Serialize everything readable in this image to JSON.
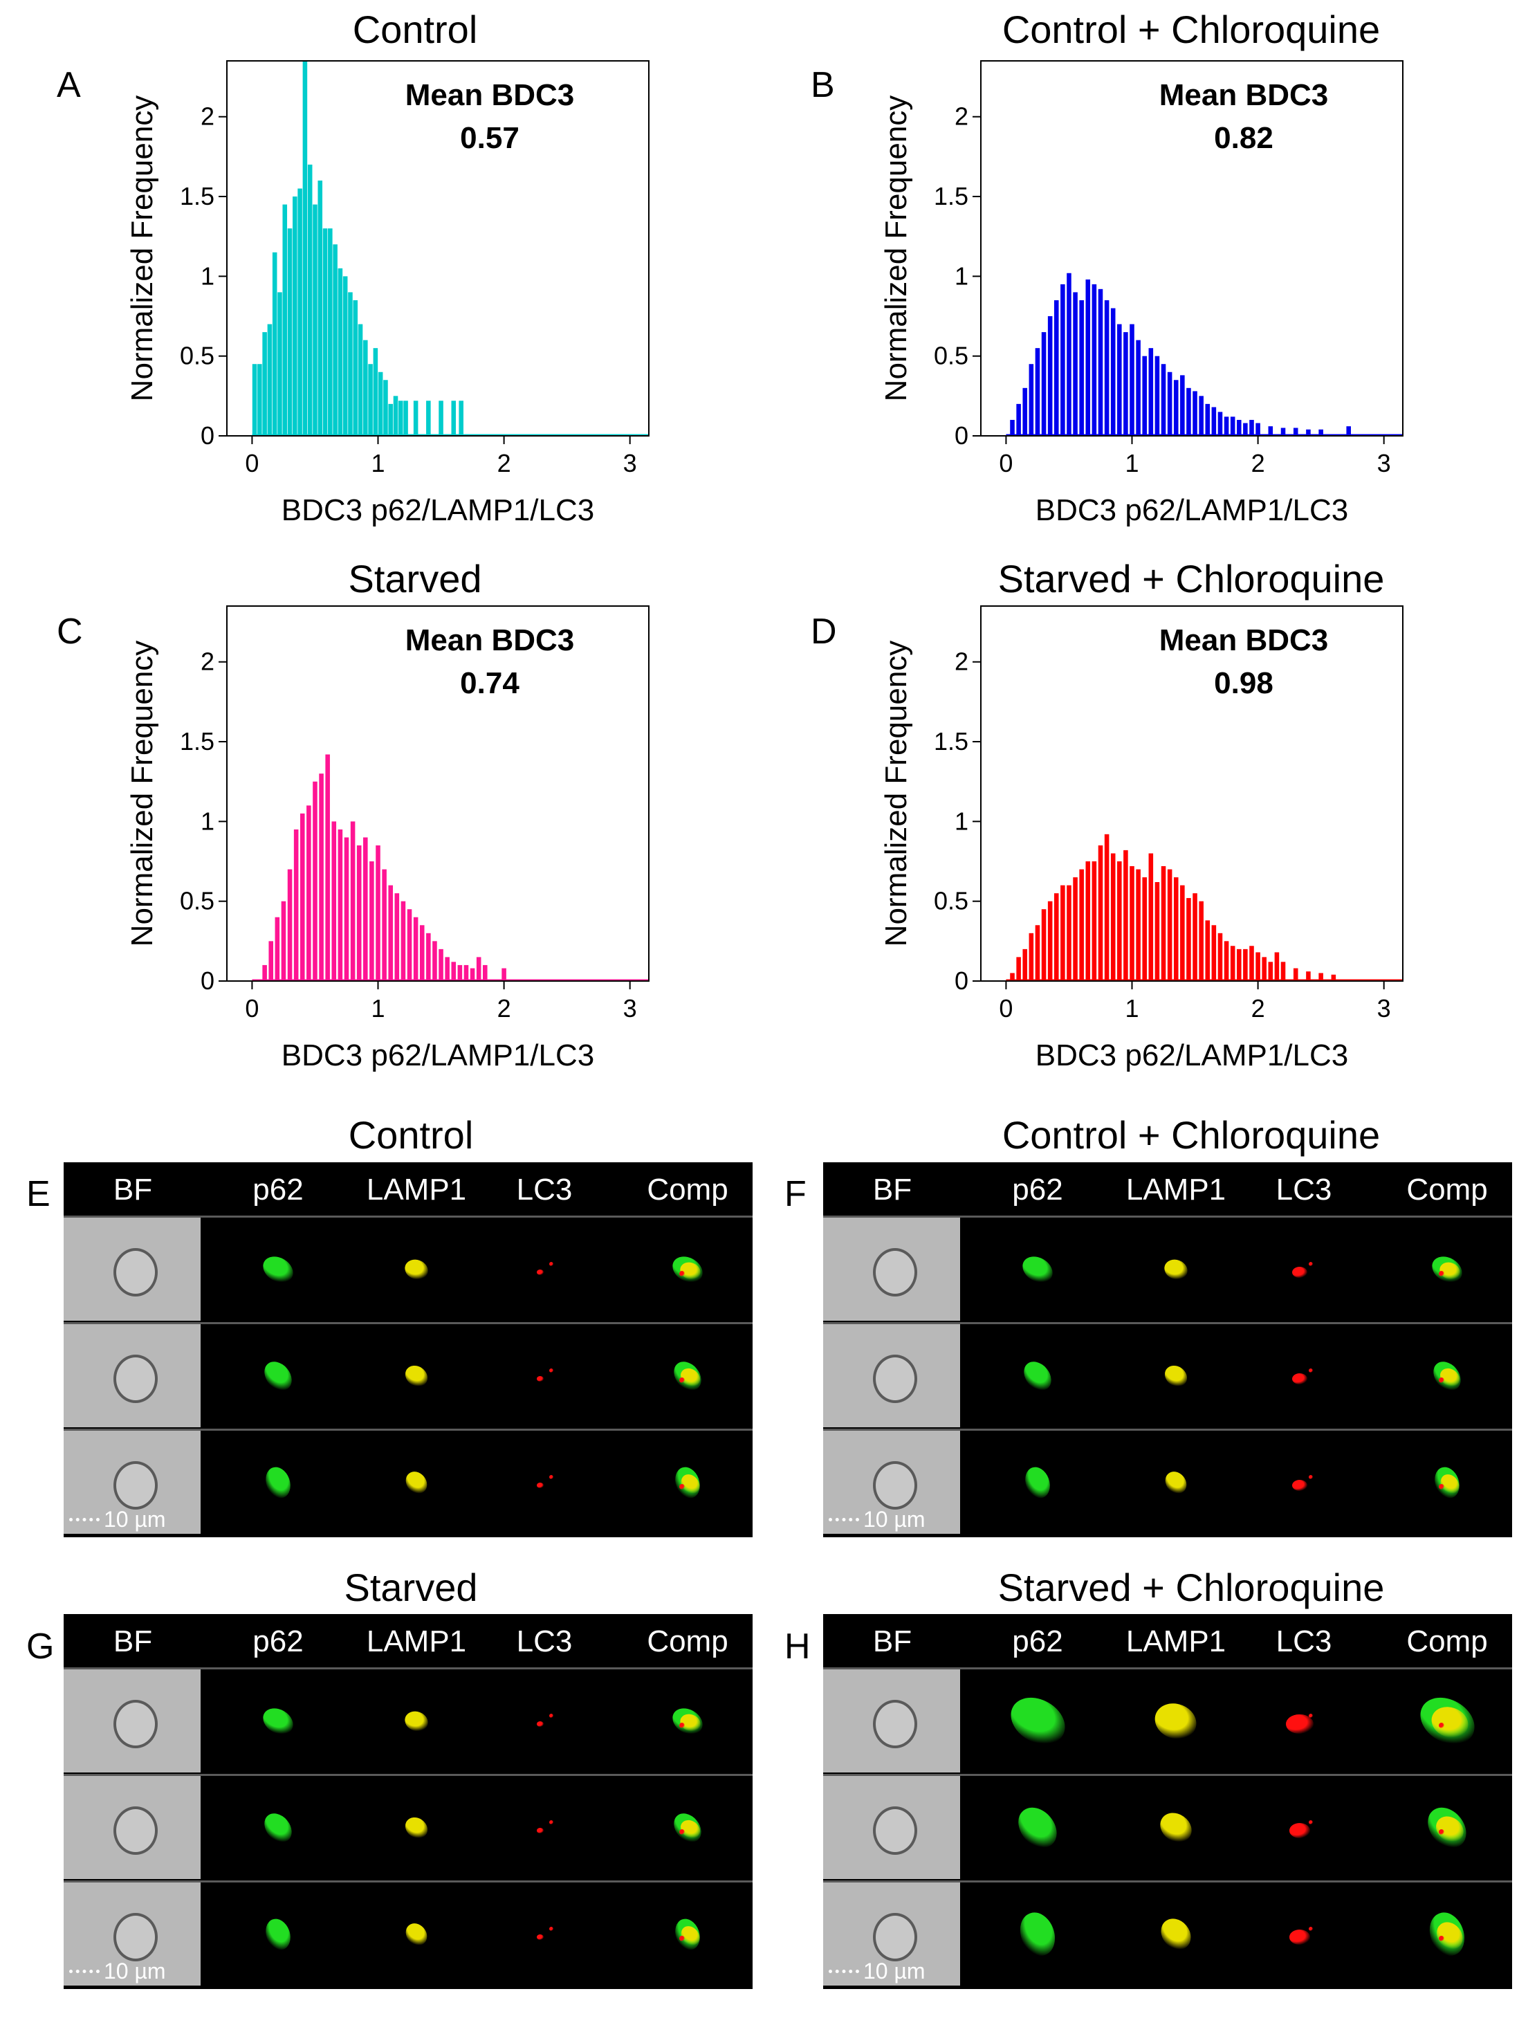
{
  "histograms": {
    "A": {
      "letter": "A",
      "title": "Control",
      "mean_label": "Mean BDC3",
      "mean_value": "0.57",
      "color": "#00CCCC"
    },
    "B": {
      "letter": "B",
      "title": "Control + Chloroquine",
      "mean_label": "Mean BDC3",
      "mean_value": "0.82",
      "color": "#0000EE"
    },
    "C": {
      "letter": "C",
      "title": "Starved",
      "mean_label": "Mean BDC3",
      "mean_value": "0.74",
      "color": "#FF1493"
    },
    "D": {
      "letter": "D",
      "title": "Starved + Chloroquine",
      "mean_label": "Mean BDC3",
      "mean_value": "0.98",
      "color": "#FF0000"
    }
  },
  "axis_text": {
    "xlabel": "BDC3 p62/LAMP1/LC3",
    "ylabel": "Normalized Frequency",
    "xticks": [
      "0",
      "1",
      "2",
      "3"
    ],
    "yticks": [
      "0",
      "0.5",
      "1",
      "1.5",
      "2"
    ]
  },
  "chart_data": [
    {
      "type": "histogram",
      "panel": "A",
      "title": "Control",
      "xlabel": "BDC3 p62/LAMP1/LC3",
      "ylabel": "Normalized Frequency",
      "xlim": [
        -0.2,
        3.15
      ],
      "ylim": [
        0,
        2.35
      ],
      "mean": 0.57,
      "color": "#00CCCC",
      "bin_width": 0.02,
      "x": [
        0.02,
        0.06,
        0.1,
        0.14,
        0.18,
        0.22,
        0.26,
        0.3,
        0.34,
        0.38,
        0.42,
        0.46,
        0.5,
        0.54,
        0.58,
        0.62,
        0.66,
        0.7,
        0.74,
        0.78,
        0.82,
        0.86,
        0.9,
        0.94,
        0.98,
        1.02,
        1.06,
        1.1,
        1.14,
        1.18,
        1.22,
        1.3,
        1.4,
        1.5,
        1.6,
        1.66
      ],
      "values": [
        0.45,
        0.45,
        0.65,
        0.7,
        1.15,
        0.9,
        1.45,
        1.3,
        1.5,
        1.55,
        2.35,
        1.7,
        1.45,
        1.6,
        1.3,
        1.3,
        1.2,
        1.05,
        1.0,
        0.9,
        0.85,
        0.7,
        0.6,
        0.45,
        0.55,
        0.4,
        0.35,
        0.2,
        0.25,
        0.22,
        0.22,
        0.22,
        0.22,
        0.22,
        0.22,
        0.22
      ]
    },
    {
      "type": "histogram",
      "panel": "B",
      "title": "Control + Chloroquine",
      "xlabel": "BDC3 p62/LAMP1/LC3",
      "ylabel": "Normalized Frequency",
      "xlim": [
        -0.2,
        3.15
      ],
      "ylim": [
        0,
        2.35
      ],
      "mean": 0.82,
      "color": "#0000EE",
      "bin_width": 0.02,
      "x": [
        0.05,
        0.1,
        0.15,
        0.2,
        0.25,
        0.3,
        0.35,
        0.4,
        0.45,
        0.5,
        0.55,
        0.6,
        0.65,
        0.7,
        0.75,
        0.8,
        0.85,
        0.9,
        0.95,
        1.0,
        1.05,
        1.1,
        1.15,
        1.2,
        1.25,
        1.3,
        1.35,
        1.4,
        1.45,
        1.5,
        1.55,
        1.6,
        1.65,
        1.7,
        1.75,
        1.8,
        1.85,
        1.9,
        1.95,
        2.0,
        2.1,
        2.2,
        2.3,
        2.4,
        2.5,
        2.72
      ],
      "values": [
        0.1,
        0.2,
        0.3,
        0.45,
        0.55,
        0.65,
        0.75,
        0.85,
        0.95,
        1.02,
        0.9,
        0.85,
        0.98,
        0.95,
        0.92,
        0.85,
        0.8,
        0.7,
        0.65,
        0.7,
        0.6,
        0.5,
        0.55,
        0.5,
        0.45,
        0.4,
        0.35,
        0.38,
        0.3,
        0.28,
        0.25,
        0.2,
        0.18,
        0.15,
        0.12,
        0.12,
        0.1,
        0.08,
        0.1,
        0.08,
        0.06,
        0.05,
        0.05,
        0.04,
        0.04,
        0.06
      ]
    },
    {
      "type": "histogram",
      "panel": "C",
      "title": "Starved",
      "xlabel": "BDC3 p62/LAMP1/LC3",
      "ylabel": "Normalized Frequency",
      "xlim": [
        -0.2,
        3.15
      ],
      "ylim": [
        0,
        2.35
      ],
      "mean": 0.74,
      "color": "#FF1493",
      "bin_width": 0.02,
      "x": [
        0.1,
        0.15,
        0.2,
        0.25,
        0.3,
        0.35,
        0.4,
        0.45,
        0.5,
        0.55,
        0.6,
        0.65,
        0.7,
        0.75,
        0.8,
        0.85,
        0.9,
        0.95,
        1.0,
        1.05,
        1.1,
        1.15,
        1.2,
        1.25,
        1.3,
        1.35,
        1.4,
        1.45,
        1.5,
        1.55,
        1.6,
        1.65,
        1.7,
        1.75,
        1.8,
        1.85,
        2.0
      ],
      "values": [
        0.1,
        0.25,
        0.4,
        0.5,
        0.7,
        0.95,
        1.05,
        1.1,
        1.25,
        1.3,
        1.42,
        1.0,
        0.95,
        0.9,
        1.0,
        0.85,
        0.9,
        0.75,
        0.85,
        0.7,
        0.6,
        0.55,
        0.5,
        0.45,
        0.4,
        0.35,
        0.3,
        0.25,
        0.2,
        0.15,
        0.12,
        0.1,
        0.1,
        0.08,
        0.15,
        0.1,
        0.08
      ]
    },
    {
      "type": "histogram",
      "panel": "D",
      "title": "Starved + Chloroquine",
      "xlabel": "BDC3 p62/LAMP1/LC3",
      "ylabel": "Normalized Frequency",
      "xlim": [
        -0.2,
        3.15
      ],
      "ylim": [
        0,
        2.35
      ],
      "mean": 0.98,
      "color": "#FF0000",
      "bin_width": 0.02,
      "x": [
        0.05,
        0.1,
        0.15,
        0.2,
        0.25,
        0.3,
        0.35,
        0.4,
        0.45,
        0.5,
        0.55,
        0.6,
        0.65,
        0.7,
        0.75,
        0.8,
        0.85,
        0.9,
        0.95,
        1.0,
        1.05,
        1.1,
        1.15,
        1.2,
        1.25,
        1.3,
        1.35,
        1.4,
        1.45,
        1.5,
        1.55,
        1.6,
        1.65,
        1.7,
        1.75,
        1.8,
        1.85,
        1.9,
        1.95,
        2.0,
        2.05,
        2.1,
        2.15,
        2.2,
        2.3,
        2.4,
        2.5,
        2.6
      ],
      "values": [
        0.05,
        0.15,
        0.2,
        0.3,
        0.35,
        0.45,
        0.5,
        0.55,
        0.6,
        0.6,
        0.65,
        0.7,
        0.75,
        0.75,
        0.85,
        0.92,
        0.8,
        0.75,
        0.82,
        0.72,
        0.7,
        0.65,
        0.8,
        0.62,
        0.72,
        0.7,
        0.65,
        0.6,
        0.52,
        0.55,
        0.5,
        0.38,
        0.35,
        0.3,
        0.25,
        0.22,
        0.2,
        0.2,
        0.22,
        0.18,
        0.15,
        0.12,
        0.18,
        0.12,
        0.08,
        0.06,
        0.05,
        0.04
      ]
    }
  ],
  "image_panels": {
    "E": {
      "letter": "E",
      "title": "Control"
    },
    "F": {
      "letter": "F",
      "title": "Control + Chloroquine"
    },
    "G": {
      "letter": "G",
      "title": "Starved"
    },
    "H": {
      "letter": "H",
      "title": "Starved + Chloroquine"
    }
  },
  "channels": [
    "BF",
    "p62",
    "LAMP1",
    "LC3",
    "Comp"
  ],
  "scale_bar": "10 µm",
  "colors": {
    "p62": "#22dd22",
    "LAMP1": "#e8e000",
    "LC3": "#ff1010",
    "background": "#000000",
    "bf": "#b8b8b8"
  }
}
